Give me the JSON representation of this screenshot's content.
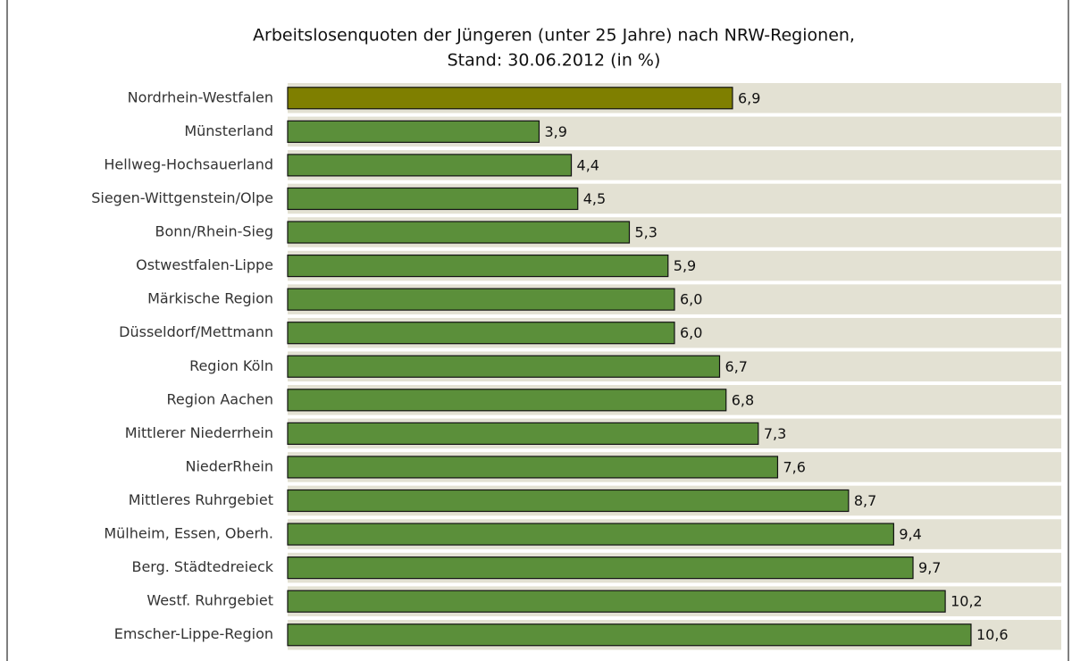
{
  "chart_data": {
    "type": "barh",
    "title": "Arbeitslosenquoten der Jüngeren (unter 25 Jahre) nach NRW-Regionen,",
    "subtitle": "Stand: 30.06.2012 (in %)",
    "categories": [
      "Nordrhein-Westfalen",
      "Münsterland",
      "Hellweg-Hochsauerland",
      "Siegen-Wittgenstein/Olpe",
      "Bonn/Rhein-Sieg",
      "Ostwestfalen-Lippe",
      "Märkische Region",
      "Düsseldorf/Mettmann",
      "Region Köln",
      "Region Aachen",
      "Mittlerer Niederrhein",
      "NiederRhein",
      "Mittleres Ruhrgebiet",
      "Mülheim, Essen, Oberh.",
      "Berg. Städtedreieck",
      "Westf. Ruhrgebiet",
      "Emscher-Lippe-Region"
    ],
    "values": [
      6.9,
      3.9,
      4.4,
      4.5,
      5.3,
      5.9,
      6.0,
      6.0,
      6.7,
      6.8,
      7.3,
      7.6,
      8.7,
      9.4,
      9.7,
      10.2,
      10.6
    ],
    "value_labels": [
      "6,9",
      "3,9",
      "4,4",
      "4,5",
      "5,3",
      "5,9",
      "6,0",
      "6,0",
      "6,7",
      "6,8",
      "7,3",
      "7,6",
      "8,7",
      "9,4",
      "9,7",
      "10,2",
      "10,6"
    ],
    "colors": [
      "#7f7f00",
      "#5b8f3a",
      "#5b8f3a",
      "#5b8f3a",
      "#5b8f3a",
      "#5b8f3a",
      "#5b8f3a",
      "#5b8f3a",
      "#5b8f3a",
      "#5b8f3a",
      "#5b8f3a",
      "#5b8f3a",
      "#5b8f3a",
      "#5b8f3a",
      "#5b8f3a",
      "#5b8f3a",
      "#5b8f3a"
    ],
    "xlim": [
      0,
      12
    ]
  }
}
